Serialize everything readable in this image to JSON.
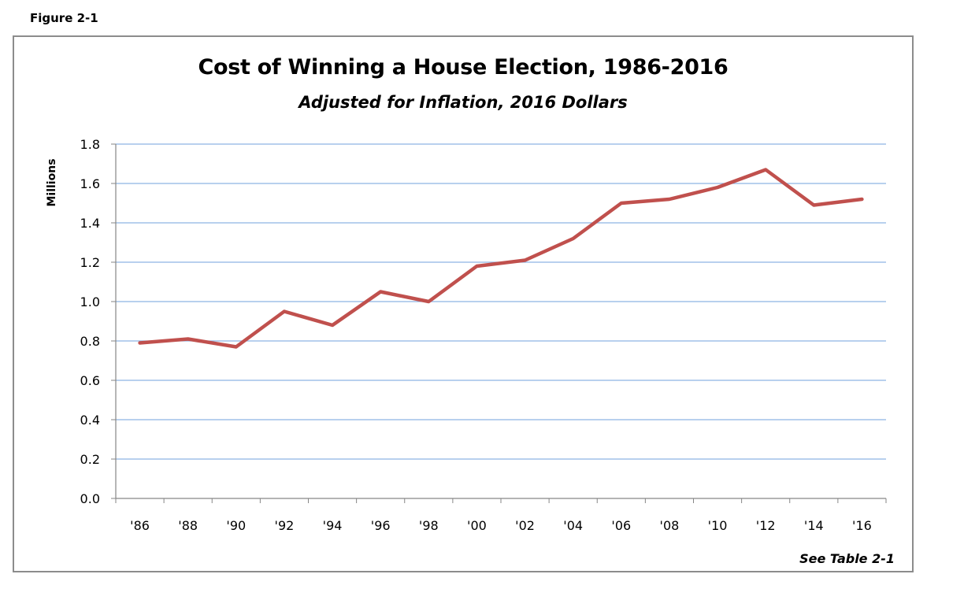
{
  "figure_label": "Figure 2-1",
  "source_note": "See Table 2-1",
  "colors": {
    "line": "#c0504d",
    "grid": "#8eb4e3",
    "axis": "#868686",
    "frame": "#8c8c8c"
  },
  "chart_data": {
    "type": "line",
    "title": "Cost of Winning a House Election, 1986-2016",
    "subtitle": "Adjusted for Inflation, 2016 Dollars",
    "xlabel": "",
    "ylabel": "Millions",
    "categories": [
      "'86",
      "'88",
      "'90",
      "'92",
      "'94",
      "'96",
      "'98",
      "'00",
      "'02",
      "'04",
      "'06",
      "'08",
      "'10",
      "'12",
      "'14",
      "'16"
    ],
    "series": [
      {
        "values": [
          0.79,
          0.81,
          0.77,
          0.95,
          0.88,
          1.05,
          1.0,
          1.18,
          1.21,
          1.32,
          1.5,
          1.52,
          1.58,
          1.67,
          1.49,
          1.52
        ]
      }
    ],
    "ylim": [
      0,
      1.8
    ],
    "yticks": [
      "0.0",
      "0.2",
      "0.4",
      "0.6",
      "0.8",
      "1.0",
      "1.2",
      "1.4",
      "1.6",
      "1.8"
    ],
    "grid": true,
    "legend": "none"
  }
}
